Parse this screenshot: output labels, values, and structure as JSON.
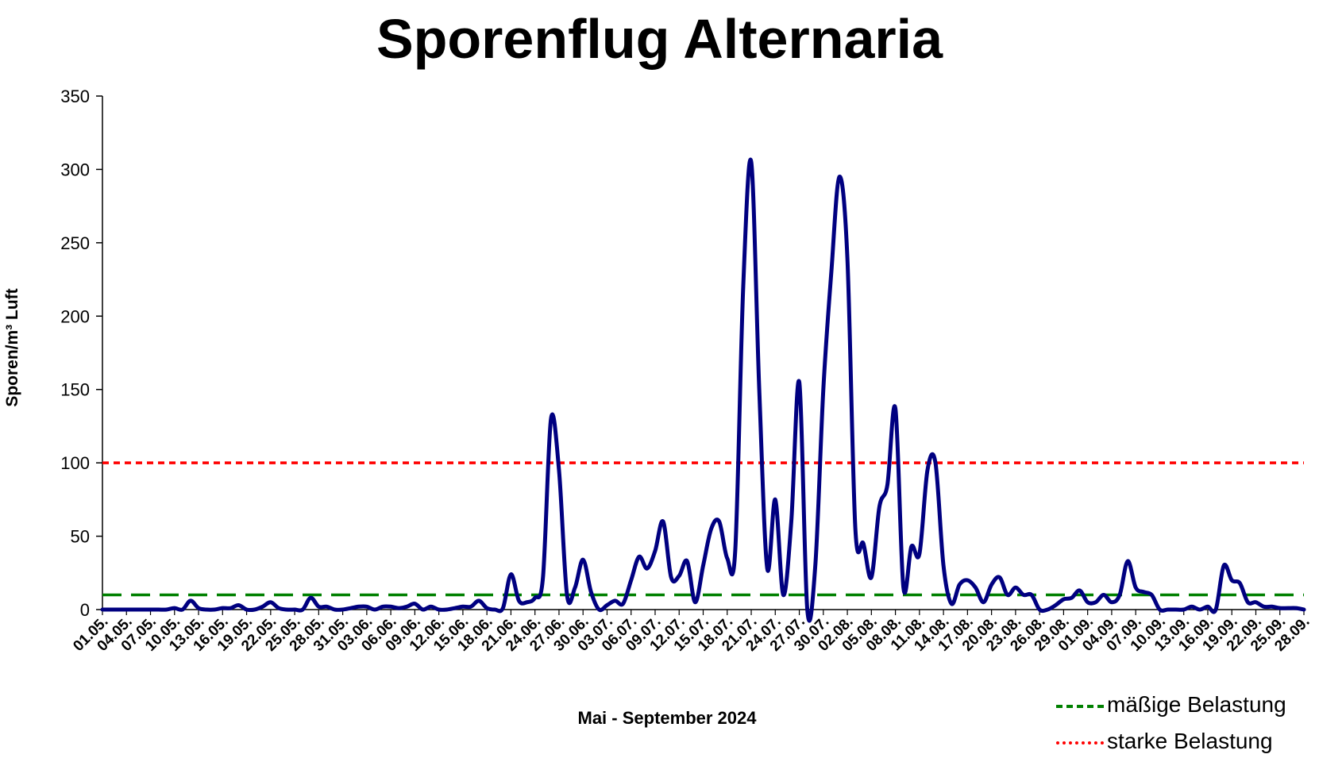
{
  "chart_data": {
    "type": "line",
    "title": "Sporenflug Alternaria",
    "xlabel": "Mai - September 2024",
    "ylabel": "Sporen/m³ Luft",
    "ylim": [
      0,
      350
    ],
    "yticks": [
      "0",
      "50",
      "100",
      "150",
      "200",
      "250",
      "300",
      "350"
    ],
    "grid": false,
    "legend_position": "bottom-right",
    "x_tick_labels": [
      "01.05.",
      "04.05.",
      "07.05.",
      "10.05.",
      "13.05.",
      "16.05.",
      "19.05.",
      "22.05.",
      "25.05.",
      "28.05.",
      "31.05.",
      "03.06.",
      "06.06.",
      "09.06.",
      "12.06.",
      "15.06.",
      "18.06.",
      "21.06.",
      "24.06.",
      "27.06.",
      "30.06.",
      "03.07.",
      "06.07.",
      "09.07.",
      "12.07.",
      "15.07.",
      "18.07.",
      "21.07.",
      "24.07.",
      "27.07.",
      "30.07.",
      "02.08.",
      "05.08.",
      "08.08.",
      "11.08.",
      "14.08.",
      "17.08.",
      "20.08.",
      "23.08.",
      "26.08.",
      "29.08.",
      "01.09.",
      "04.09.",
      "07.09.",
      "10.09.",
      "13.09.",
      "16.09.",
      "19.09.",
      "22.09.",
      "25.09.",
      "28.09."
    ],
    "series": [
      {
        "color": "#000080",
        "values": [
          0,
          0,
          0,
          0,
          0,
          0,
          0,
          0,
          0,
          1,
          0,
          6,
          1,
          0,
          0,
          1,
          1,
          3,
          0,
          0,
          2,
          5,
          1,
          0,
          0,
          0,
          8,
          2,
          2,
          0,
          0,
          1,
          2,
          2,
          0,
          2,
          2,
          1,
          2,
          4,
          0,
          2,
          0,
          0,
          1,
          2,
          2,
          6,
          1,
          0,
          1,
          24,
          6,
          5,
          8,
          22,
          130,
          95,
          10,
          15,
          34,
          12,
          0,
          3,
          6,
          4,
          20,
          36,
          28,
          40,
          60,
          22,
          23,
          33,
          5,
          30,
          55,
          60,
          35,
          40,
          220,
          305,
          150,
          28,
          75,
          10,
          60,
          155,
          0,
          30,
          150,
          230,
          295,
          240,
          55,
          45,
          22,
          70,
          85,
          137,
          15,
          43,
          38,
          95,
          100,
          30,
          4,
          17,
          20,
          15,
          5,
          17,
          22,
          10,
          15,
          10,
          10,
          0,
          0,
          3,
          7,
          8,
          13,
          5,
          5,
          10,
          5,
          10,
          33,
          15,
          12,
          10,
          0,
          0,
          0,
          0,
          2,
          0,
          2,
          0,
          30,
          20,
          18,
          5,
          5,
          2,
          2,
          1,
          1,
          1,
          0
        ]
      }
    ],
    "reference_lines": [
      {
        "name": "mäßige Belastung",
        "value": 10,
        "color": "#008000",
        "style": "dashed"
      },
      {
        "name": "starke Belastung",
        "value": 100,
        "color": "#ff0000",
        "style": "dotted"
      }
    ]
  }
}
